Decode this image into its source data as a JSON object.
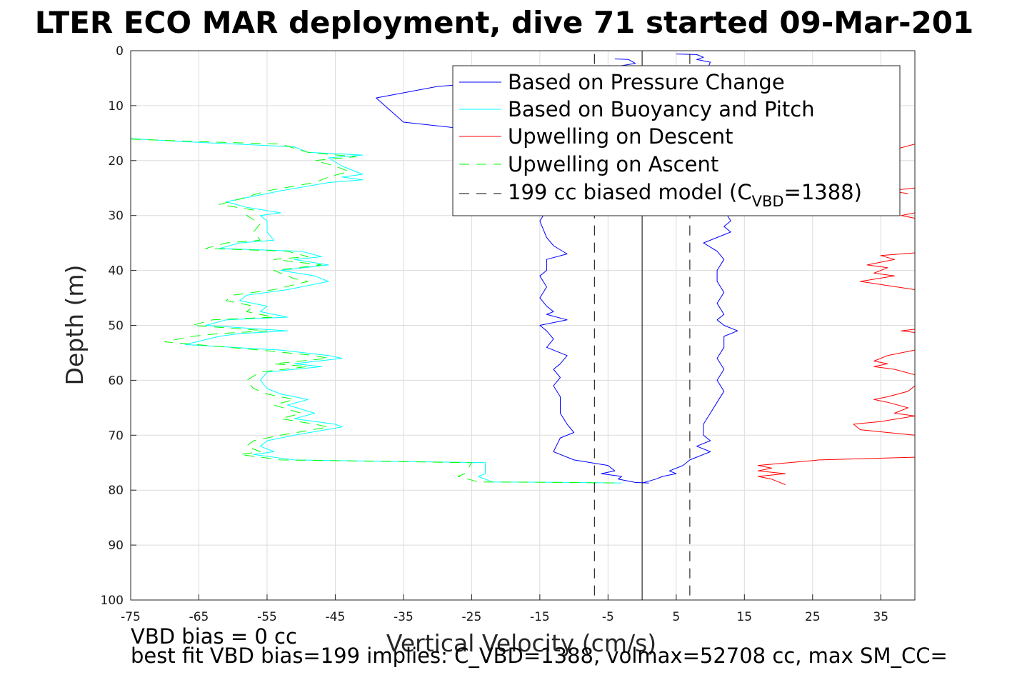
{
  "title": "LTER ECO MAR deployment, dive 71 started 09-Mar-201",
  "footer": {
    "line1": "VBD bias = 0 cc",
    "line2": "best fit VBD bias=199 implies: C_VBD=1388, volmax=52708 cc, max SM_CC="
  },
  "chart_data": {
    "type": "line",
    "xlabel": "Vertical Velocity (cm/s)",
    "ylabel": "Depth (m)",
    "xlim": [
      -75,
      40
    ],
    "ylim": [
      0,
      100
    ],
    "y_reversed": true,
    "grid": true,
    "legend_position": "top-right",
    "x_ticks": [
      -75,
      -65,
      -55,
      -45,
      -35,
      -25,
      -15,
      -5,
      5,
      15,
      25,
      35
    ],
    "y_ticks": [
      0,
      10,
      20,
      30,
      40,
      50,
      60,
      70,
      80,
      90,
      100
    ],
    "legend": [
      {
        "label": "Based on Pressure Change",
        "color": "#0000ff",
        "dash": "solid"
      },
      {
        "label": "Based on Buoyancy and Pitch",
        "color": "#00ffff",
        "dash": "solid"
      },
      {
        "label": "Upwelling on Descent",
        "color": "#ff0000",
        "dash": "solid"
      },
      {
        "label": "Upwelling on Ascent",
        "color": "#00ff00",
        "dash": "dashed"
      },
      {
        "label_main": "199 cc biased model (C",
        "label_sub": "VBD",
        "label_end": "=1388)",
        "color": "#000000",
        "dash": "dashed"
      }
    ],
    "series": [
      {
        "name": "Based on Pressure Change",
        "color": "#0000ff",
        "dash": "solid",
        "points": [
          [
            -4,
            1.5
          ],
          [
            -2,
            1.6
          ],
          [
            -1,
            2.3
          ],
          [
            -14,
            5
          ],
          [
            -30,
            6.5
          ],
          [
            -39,
            8.6
          ],
          [
            -35,
            13
          ],
          [
            -24,
            14.5
          ],
          [
            -15,
            17
          ],
          [
            -14,
            20
          ],
          [
            -13,
            25
          ],
          [
            -14,
            29
          ],
          [
            -15,
            31
          ],
          [
            -14,
            34
          ],
          [
            -13,
            35.5
          ],
          [
            -11,
            37
          ],
          [
            -14,
            38
          ],
          [
            -14,
            40
          ],
          [
            -15,
            41
          ],
          [
            -14,
            43
          ],
          [
            -15,
            45
          ],
          [
            -14,
            46.5
          ],
          [
            -13,
            47.5
          ],
          [
            -14,
            48
          ],
          [
            -11,
            49
          ],
          [
            -15,
            50
          ],
          [
            -14,
            51
          ],
          [
            -13,
            52.5
          ],
          [
            -14,
            54
          ],
          [
            -11,
            55.5
          ],
          [
            -12,
            57
          ],
          [
            -13,
            58
          ],
          [
            -12,
            59.5
          ],
          [
            -13,
            61
          ],
          [
            -12,
            63
          ],
          [
            -12,
            66
          ],
          [
            -11,
            68
          ],
          [
            -10,
            69.5
          ],
          [
            -12,
            70.5
          ],
          [
            -13,
            73
          ],
          [
            -10,
            74.5
          ],
          [
            -5,
            75.5
          ],
          [
            -4,
            76.5
          ],
          [
            -6,
            77
          ],
          [
            -3,
            77.5
          ],
          [
            -3.5,
            78
          ],
          [
            -1,
            78.6
          ],
          [
            1,
            78.7
          ]
        ]
      },
      {
        "name": "Based on Pressure Change",
        "color": "#0000ff",
        "dash": "solid",
        "points": [
          [
            5,
            0.6
          ],
          [
            8,
            0.7
          ],
          [
            9,
            1.2
          ],
          [
            8,
            1.6
          ],
          [
            10,
            2.1
          ],
          [
            9,
            5
          ],
          [
            10,
            10
          ],
          [
            11,
            18
          ],
          [
            11,
            25
          ],
          [
            12,
            29
          ],
          [
            13,
            31
          ],
          [
            12,
            32
          ],
          [
            13,
            33
          ],
          [
            9,
            35
          ],
          [
            11,
            36.5
          ],
          [
            12,
            38
          ],
          [
            11,
            40
          ],
          [
            11,
            42
          ],
          [
            12,
            44
          ],
          [
            11,
            46
          ],
          [
            12,
            48
          ],
          [
            11,
            49
          ],
          [
            12,
            50
          ],
          [
            14,
            51
          ],
          [
            12,
            52
          ],
          [
            12,
            54
          ],
          [
            11,
            56
          ],
          [
            12,
            58
          ],
          [
            11,
            60
          ],
          [
            12,
            62
          ],
          [
            11,
            64
          ],
          [
            10,
            66
          ],
          [
            9,
            68
          ],
          [
            9,
            70
          ],
          [
            10,
            71
          ],
          [
            8,
            72
          ],
          [
            10,
            73
          ],
          [
            7,
            74.5
          ],
          [
            6,
            75.5
          ],
          [
            4,
            76.5
          ],
          [
            5,
            77
          ],
          [
            3,
            77.5
          ],
          [
            2,
            78
          ],
          [
            0,
            78.7
          ]
        ]
      },
      {
        "name": "Based on Buoyancy and Pitch",
        "color": "#00ffff",
        "dash": "solid",
        "points": [
          [
            -75,
            16
          ],
          [
            -68,
            16.5
          ],
          [
            -51,
            17.5
          ],
          [
            -49,
            18.5
          ],
          [
            -41,
            19
          ],
          [
            -46,
            19.5
          ],
          [
            -44,
            21
          ],
          [
            -41,
            22.5
          ],
          [
            -44,
            23
          ],
          [
            -41,
            23.5
          ],
          [
            -46,
            24
          ],
          [
            -53,
            25.5
          ],
          [
            -57,
            26.5
          ],
          [
            -61,
            27.5
          ],
          [
            -58,
            28.5
          ],
          [
            -53,
            29.5
          ],
          [
            -56,
            30
          ],
          [
            -55,
            31
          ],
          [
            -55,
            33
          ],
          [
            -54,
            34.5
          ],
          [
            -59,
            35
          ],
          [
            -62,
            36
          ],
          [
            -50,
            36.5
          ],
          [
            -47,
            37.5
          ],
          [
            -51,
            38
          ],
          [
            -46,
            39
          ],
          [
            -53,
            40
          ],
          [
            -48,
            41
          ],
          [
            -46,
            42
          ],
          [
            -52,
            43.5
          ],
          [
            -58,
            44.5
          ],
          [
            -59,
            45.5
          ],
          [
            -55,
            46.5
          ],
          [
            -56,
            47.5
          ],
          [
            -52,
            48.5
          ],
          [
            -61,
            49
          ],
          [
            -64,
            50
          ],
          [
            -52,
            51
          ],
          [
            -59,
            51.5
          ],
          [
            -62,
            52
          ],
          [
            -67,
            53.5
          ],
          [
            -53,
            54.5
          ],
          [
            -46,
            55.5
          ],
          [
            -44,
            56
          ],
          [
            -51,
            57
          ],
          [
            -47,
            57.5
          ],
          [
            -55,
            58.5
          ],
          [
            -56,
            60
          ],
          [
            -55,
            61.5
          ],
          [
            -53,
            62.5
          ],
          [
            -49,
            63.5
          ],
          [
            -52,
            64.5
          ],
          [
            -48,
            66
          ],
          [
            -51,
            67
          ],
          [
            -45,
            68
          ],
          [
            -44,
            68.5
          ],
          [
            -51,
            70
          ],
          [
            -55,
            71
          ],
          [
            -56,
            72
          ],
          [
            -54,
            73
          ],
          [
            -57,
            73.5
          ],
          [
            -51,
            74.5
          ],
          [
            -23,
            75
          ],
          [
            -23,
            77
          ],
          [
            -24,
            77.5
          ],
          [
            -22,
            78.5
          ],
          [
            -10,
            78.6
          ],
          [
            -3,
            78.7
          ]
        ]
      },
      {
        "name": "Upwelling on Ascent",
        "color": "#00ff00",
        "dash": "dashed",
        "points": [
          [
            -75,
            16.1
          ],
          [
            -66,
            16.5
          ],
          [
            -53,
            17
          ],
          [
            -49,
            18.5
          ],
          [
            -42,
            19.3
          ],
          [
            -48,
            20
          ],
          [
            -45,
            21
          ],
          [
            -43,
            22
          ],
          [
            -46,
            23
          ],
          [
            -48,
            24
          ],
          [
            -55,
            25.5
          ],
          [
            -59,
            27
          ],
          [
            -62,
            28
          ],
          [
            -57,
            29
          ],
          [
            -58,
            30
          ],
          [
            -56,
            31.5
          ],
          [
            -57,
            33
          ],
          [
            -56,
            34.5
          ],
          [
            -61,
            35
          ],
          [
            -64,
            36
          ],
          [
            -52,
            36.5
          ],
          [
            -49,
            37.5
          ],
          [
            -54,
            38
          ],
          [
            -47,
            39
          ],
          [
            -54,
            40
          ],
          [
            -51,
            41.5
          ],
          [
            -49,
            42
          ],
          [
            -54,
            43.5
          ],
          [
            -60,
            44.5
          ],
          [
            -61,
            45.5
          ],
          [
            -57,
            46.5
          ],
          [
            -58,
            47.5
          ],
          [
            -54,
            48.5
          ],
          [
            -63,
            49
          ],
          [
            -66,
            50
          ],
          [
            -55,
            51
          ],
          [
            -62,
            51.5
          ],
          [
            -66,
            52
          ],
          [
            -70,
            53
          ],
          [
            -56,
            54.5
          ],
          [
            -48,
            55.5
          ],
          [
            -46,
            56
          ],
          [
            -54,
            57
          ],
          [
            -49,
            57.5
          ],
          [
            -56,
            58.5
          ],
          [
            -58,
            60
          ],
          [
            -57,
            61.5
          ],
          [
            -55,
            62.5
          ],
          [
            -51,
            63.5
          ],
          [
            -54,
            64.5
          ],
          [
            -50,
            66
          ],
          [
            -53,
            67
          ],
          [
            -48,
            68
          ],
          [
            -46,
            68.5
          ],
          [
            -53,
            70
          ],
          [
            -57,
            71
          ],
          [
            -58,
            72
          ],
          [
            -56,
            73
          ],
          [
            -59,
            73.5
          ],
          [
            -53,
            74.5
          ],
          [
            -25,
            75
          ],
          [
            -26,
            77
          ],
          [
            -27,
            77.5
          ],
          [
            -24,
            78.5
          ],
          [
            -12,
            78.6
          ],
          [
            -4,
            78.7
          ]
        ]
      },
      {
        "name": "Upwelling on Descent",
        "color": "#ff0000",
        "dash": "solid",
        "points": [
          [
            40,
            17
          ],
          [
            37,
            18
          ],
          [
            34,
            19
          ]
        ]
      },
      {
        "name": "Upwelling on Descent",
        "color": "#ff0000",
        "dash": "solid",
        "points": [
          [
            40,
            25
          ],
          [
            36,
            25.5
          ],
          [
            39,
            26
          ]
        ]
      },
      {
        "name": "Upwelling on Descent",
        "color": "#ff0000",
        "dash": "solid",
        "points": [
          [
            40,
            29.5
          ],
          [
            38,
            30
          ],
          [
            40,
            30.5
          ]
        ]
      },
      {
        "name": "Upwelling on Descent",
        "color": "#ff0000",
        "dash": "solid",
        "points": [
          [
            40,
            36.8
          ],
          [
            35,
            37.3
          ],
          [
            37,
            38
          ],
          [
            33,
            39
          ],
          [
            36,
            39.5
          ],
          [
            34,
            40.5
          ],
          [
            37,
            41
          ],
          [
            32,
            42
          ],
          [
            40,
            43.5
          ]
        ]
      },
      {
        "name": "Upwelling on Descent",
        "color": "#ff0000",
        "dash": "solid",
        "points": [
          [
            40,
            50.7
          ],
          [
            38,
            51
          ],
          [
            40,
            51.3
          ]
        ]
      },
      {
        "name": "Upwelling on Descent",
        "color": "#ff0000",
        "dash": "solid",
        "points": [
          [
            40,
            54.5
          ],
          [
            36,
            55.5
          ],
          [
            34,
            56.5
          ],
          [
            36,
            57
          ],
          [
            34,
            57.5
          ],
          [
            37,
            58
          ],
          [
            40,
            59
          ]
        ]
      },
      {
        "name": "Upwelling on Descent",
        "color": "#ff0000",
        "dash": "solid",
        "points": [
          [
            40,
            61
          ],
          [
            39,
            62
          ],
          [
            36,
            63
          ],
          [
            34,
            63.5
          ],
          [
            36,
            64
          ],
          [
            39,
            65
          ],
          [
            37,
            66
          ],
          [
            40,
            66.5
          ],
          [
            35,
            67.5
          ],
          [
            31,
            68
          ],
          [
            32,
            69
          ],
          [
            36,
            69.5
          ],
          [
            40,
            70
          ]
        ]
      },
      {
        "name": "Upwelling on Descent",
        "color": "#ff0000",
        "dash": "solid",
        "points": [
          [
            40,
            74
          ],
          [
            26,
            74.5
          ],
          [
            17,
            75.5
          ],
          [
            19,
            76
          ],
          [
            17,
            76.5
          ],
          [
            21,
            77
          ],
          [
            17,
            77.5
          ],
          [
            19,
            78
          ],
          [
            20,
            78.5
          ],
          [
            21,
            79
          ]
        ]
      },
      {
        "name": "199 cc biased model (C_VBD=1388)",
        "color": "#000000",
        "dash": "dashed",
        "points": [
          [
            -7,
            0.6
          ],
          [
            -7,
            100
          ]
        ]
      },
      {
        "name": "199 cc biased model (C_VBD=1388)",
        "color": "#000000",
        "dash": "dashed",
        "points": [
          [
            7,
            0.6
          ],
          [
            7,
            100
          ]
        ]
      },
      {
        "name": "zero",
        "color": "#000000",
        "dash": "solid",
        "points": [
          [
            0,
            0
          ],
          [
            0,
            100
          ]
        ]
      }
    ]
  }
}
